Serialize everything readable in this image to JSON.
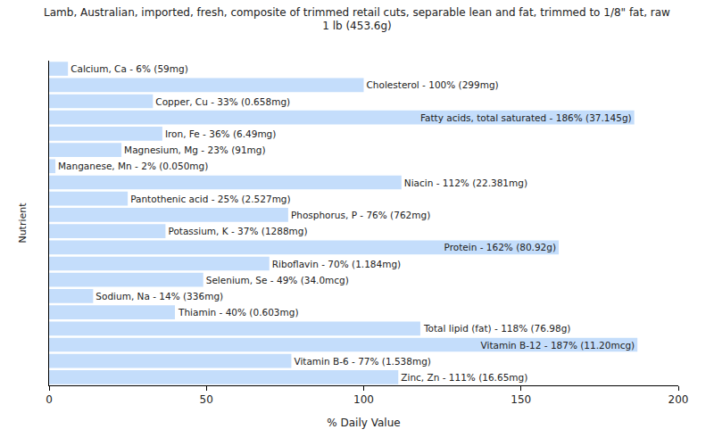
{
  "chart_data": {
    "type": "bar",
    "orientation": "horizontal",
    "title": "Lamb, Australian, imported, fresh, composite of trimmed retail cuts, separable lean and fat, trimmed to 1/8\" fat, raw\n1 lb (453.6g)",
    "x_label": "% Daily Value",
    "y_label": "Nutrient",
    "categories": [
      null,
      null,
      null,
      null,
      null,
      null,
      null,
      null,
      null,
      null,
      null,
      null,
      null,
      null,
      null,
      null,
      null,
      null,
      null,
      null
    ],
    "values": [
      6,
      100,
      33,
      186,
      36,
      23,
      2,
      112,
      25,
      76,
      37,
      162,
      70,
      49,
      14,
      40,
      118,
      187,
      77,
      111
    ],
    "value_labels": [
      "Calcium, Ca - 6% (59mg)",
      "Cholesterol - 100% (299mg)",
      "Copper, Cu - 33% (0.658mg)",
      "Fatty acids, total saturated - 186% (37.145g)",
      "Iron, Fe - 36% (6.49mg)",
      "Magnesium, Mg - 23% (91mg)",
      "Manganese, Mn - 2% (0.050mg)",
      "Niacin - 112% (22.381mg)",
      "Pantothenic acid - 25% (2.527mg)",
      "Phosphorus, P - 76% (762mg)",
      "Potassium, K - 37% (1288mg)",
      "Protein - 162% (80.92g)",
      "Riboflavin - 70% (1.184mg)",
      "Selenium, Se - 49% (34.0mcg)",
      "Sodium, Na - 14% (336mg)",
      "Thiamin - 40% (0.603mg)",
      "Total lipid (fat) - 118% (76.98g)",
      "Vitamin B-12 - 187% (11.20mcg)",
      "Vitamin B-6 - 77% (1.538mg)",
      "Zinc, Zn - 111% (16.65mg)"
    ],
    "data_labels": true,
    "color": "#c4ddfb",
    "xlim": [
      0,
      200
    ],
    "xticks": [
      0,
      50,
      100,
      150,
      200
    ],
    "grid": false,
    "tick_labels": "x"
  }
}
